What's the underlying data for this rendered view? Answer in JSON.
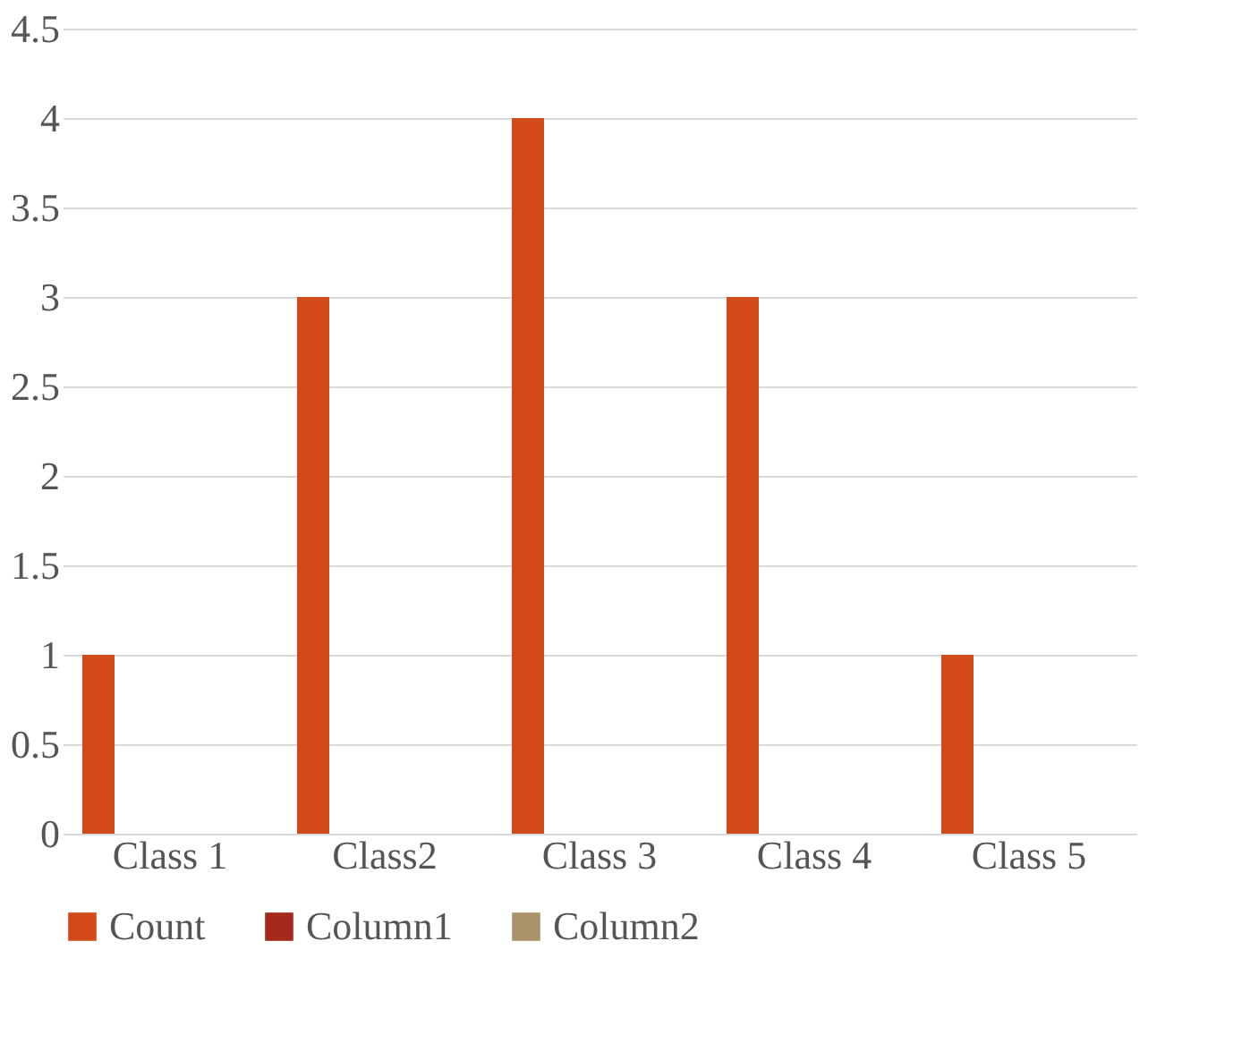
{
  "chart_data": {
    "type": "bar",
    "categories": [
      "Class 1",
      "Class2",
      "Class 3",
      "Class 4",
      "Class 5"
    ],
    "series": [
      {
        "name": "Count",
        "color": "#d4491a",
        "values": [
          1,
          3,
          4,
          3,
          1
        ]
      },
      {
        "name": "Column1",
        "color": "#a52a1c",
        "values": [
          null,
          null,
          null,
          null,
          null
        ]
      },
      {
        "name": "Column2",
        "color": "#a8936b",
        "values": [
          null,
          null,
          null,
          null,
          null
        ]
      }
    ],
    "ylim": [
      0,
      4.5
    ],
    "yticks": [
      0,
      0.5,
      1,
      1.5,
      2,
      2.5,
      3,
      3.5,
      4,
      4.5
    ],
    "grid": "y",
    "legend": "bottom"
  }
}
